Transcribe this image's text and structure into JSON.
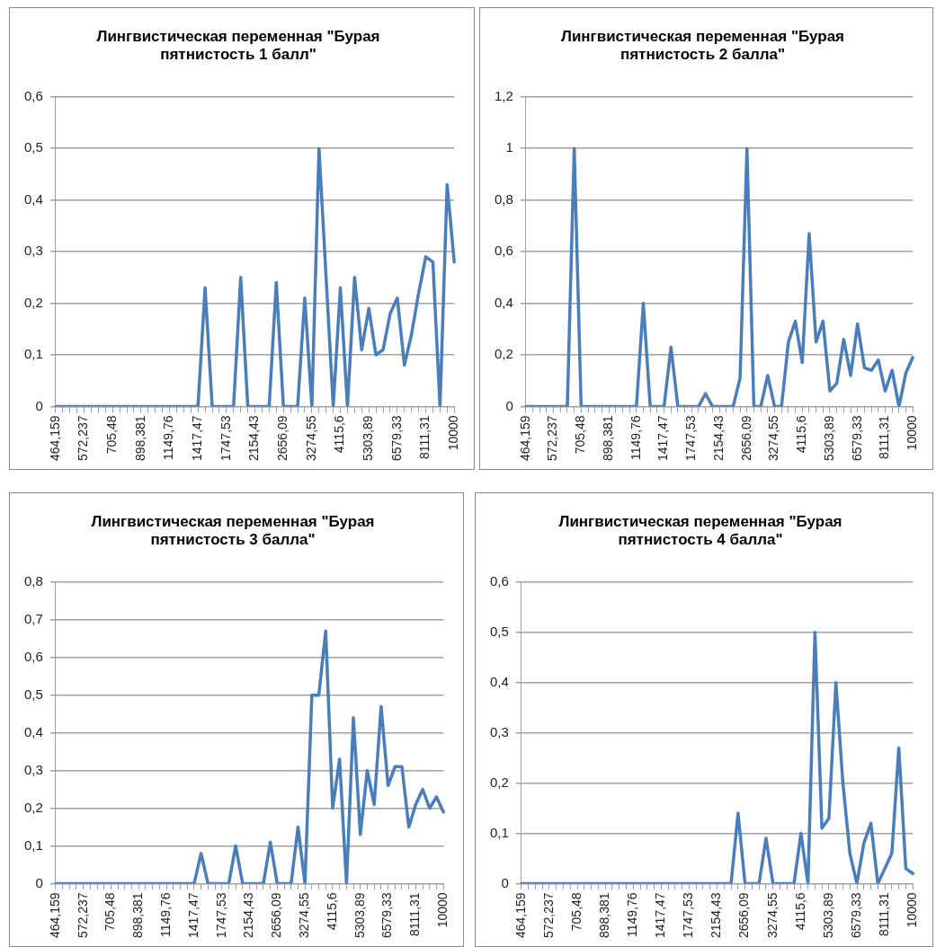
{
  "chart_data": [
    {
      "type": "line",
      "title": "Лингвистическая переменная \"Бурая пятнистость 1 балл\"",
      "categories": [
        "464,159",
        null,
        null,
        null,
        "572,237",
        null,
        null,
        null,
        "705,48",
        null,
        null,
        null,
        "898,381",
        null,
        null,
        null,
        "1149,76",
        null,
        null,
        null,
        "1417,47",
        null,
        null,
        null,
        "1747,53",
        null,
        null,
        null,
        "2154,43",
        null,
        null,
        null,
        "2656,09",
        null,
        null,
        null,
        "3274,55",
        null,
        null,
        null,
        "4115,6",
        null,
        null,
        null,
        "5303,89",
        null,
        null,
        null,
        "6579,33",
        null,
        null,
        null,
        "8111,31",
        null,
        null,
        null,
        "10000"
      ],
      "series": [
        {
          "color": "#4a7ebb",
          "values": [
            0,
            0,
            0,
            0,
            0,
            0,
            0,
            0,
            0,
            0,
            0,
            0,
            0,
            0,
            0,
            0,
            0,
            0,
            0,
            0,
            0,
            0.23,
            0,
            0,
            0,
            0,
            0.25,
            0,
            0,
            0,
            0,
            0.24,
            0,
            0,
            0,
            0.21,
            0,
            0.5,
            0.25,
            0,
            0.23,
            0,
            0.25,
            0.11,
            0.19,
            0.1,
            0.11,
            0.18,
            0.21,
            0.08,
            0.14,
            0.22,
            0.29,
            0.28,
            0,
            0.43,
            0.28
          ]
        }
      ],
      "ylim": [
        0,
        0.6
      ],
      "yticks": [
        {
          "value": 0,
          "label": "0"
        },
        {
          "value": 0.1,
          "label": "0,1"
        },
        {
          "value": 0.2,
          "label": "0,2"
        },
        {
          "value": 0.3,
          "label": "0,3"
        },
        {
          "value": 0.4,
          "label": "0,4"
        },
        {
          "value": 0.5,
          "label": "0,5"
        },
        {
          "value": 0.6,
          "label": "0,6"
        }
      ],
      "grid": "y",
      "legend": false,
      "marker": "none",
      "line_style": "solid"
    },
    {
      "type": "line",
      "title": "Лингвистическая переменная \"Бурая пятнистость 2 балла\"",
      "categories": [
        "464,159",
        null,
        null,
        null,
        "572,237",
        null,
        null,
        null,
        "705,48",
        null,
        null,
        null,
        "898,381",
        null,
        null,
        null,
        "1149,76",
        null,
        null,
        null,
        "1417,47",
        null,
        null,
        null,
        "1747,53",
        null,
        null,
        null,
        "2154,43",
        null,
        null,
        null,
        "2656,09",
        null,
        null,
        null,
        "3274,55",
        null,
        null,
        null,
        "4115,6",
        null,
        null,
        null,
        "5303,89",
        null,
        null,
        null,
        "6579,33",
        null,
        null,
        null,
        "8111,31",
        null,
        null,
        null,
        "10000"
      ],
      "series": [
        {
          "color": "#4a7ebb",
          "values": [
            0,
            0,
            0,
            0,
            0,
            0,
            0,
            1,
            0,
            0,
            0,
            0,
            0,
            0,
            0,
            0,
            0,
            0.4,
            0,
            0,
            0,
            0.23,
            0,
            0,
            0,
            0,
            0.05,
            0,
            0,
            0,
            0,
            0.11,
            1,
            0,
            0,
            0.12,
            0,
            0,
            0.25,
            0.33,
            0.17,
            0.67,
            0.25,
            0.33,
            0.06,
            0.09,
            0.26,
            0.12,
            0.32,
            0.15,
            0.14,
            0.18,
            0.06,
            0.14,
            0,
            0.13,
            0.19
          ]
        }
      ],
      "ylim": [
        0,
        1.2
      ],
      "yticks": [
        {
          "value": 0,
          "label": "0"
        },
        {
          "value": 0.2,
          "label": "0,2"
        },
        {
          "value": 0.4,
          "label": "0,4"
        },
        {
          "value": 0.6,
          "label": "0,6"
        },
        {
          "value": 0.8,
          "label": "0,8"
        },
        {
          "value": 1,
          "label": "1"
        },
        {
          "value": 1.2,
          "label": "1,2"
        }
      ],
      "grid": "y",
      "legend": false,
      "marker": "none",
      "line_style": "solid"
    },
    {
      "type": "line",
      "title": "Лингвистическая переменная \"Бурая пятнистость 3 балла\"",
      "categories": [
        "464,159",
        null,
        null,
        null,
        "572,237",
        null,
        null,
        null,
        "705,48",
        null,
        null,
        null,
        "898,381",
        null,
        null,
        null,
        "1149,76",
        null,
        null,
        null,
        "1417,47",
        null,
        null,
        null,
        "1747,53",
        null,
        null,
        null,
        "2154,43",
        null,
        null,
        null,
        "2656,09",
        null,
        null,
        null,
        "3274,55",
        null,
        null,
        null,
        "4115,6",
        null,
        null,
        null,
        "5303,89",
        null,
        null,
        null,
        "6579,33",
        null,
        null,
        null,
        "8111,31",
        null,
        null,
        null,
        "10000"
      ],
      "series": [
        {
          "color": "#4a7ebb",
          "values": [
            0,
            0,
            0,
            0,
            0,
            0,
            0,
            0,
            0,
            0,
            0,
            0,
            0,
            0,
            0,
            0,
            0,
            0,
            0,
            0,
            0,
            0.08,
            0,
            0,
            0,
            0,
            0.1,
            0,
            0,
            0,
            0,
            0.11,
            0,
            0,
            0,
            0.15,
            0,
            0.5,
            0.5,
            0.67,
            0.2,
            0.33,
            0,
            0.44,
            0.13,
            0.3,
            0.21,
            0.47,
            0.26,
            0.31,
            0.31,
            0.15,
            0.21,
            0.25,
            0.2,
            0.23,
            0.19
          ]
        }
      ],
      "ylim": [
        0,
        0.8
      ],
      "yticks": [
        {
          "value": 0,
          "label": "0"
        },
        {
          "value": 0.1,
          "label": "0,1"
        },
        {
          "value": 0.2,
          "label": "0,2"
        },
        {
          "value": 0.3,
          "label": "0,3"
        },
        {
          "value": 0.4,
          "label": "0,4"
        },
        {
          "value": 0.5,
          "label": "0,5"
        },
        {
          "value": 0.6,
          "label": "0,6"
        },
        {
          "value": 0.7,
          "label": "0,7"
        },
        {
          "value": 0.8,
          "label": "0,8"
        }
      ],
      "grid": "y",
      "legend": false,
      "marker": "none",
      "line_style": "solid"
    },
    {
      "type": "line",
      "title": "Лингвистическая переменная \"Бурая пятнистость 4 балла\"",
      "categories": [
        "464,159",
        null,
        null,
        null,
        "572,237",
        null,
        null,
        null,
        "705,48",
        null,
        null,
        null,
        "898,381",
        null,
        null,
        null,
        "1149,76",
        null,
        null,
        null,
        "1417,47",
        null,
        null,
        null,
        "1747,53",
        null,
        null,
        null,
        "2154,43",
        null,
        null,
        null,
        "2656,09",
        null,
        null,
        null,
        "3274,55",
        null,
        null,
        null,
        "4115,6",
        null,
        null,
        null,
        "5303,89",
        null,
        null,
        null,
        "6579,33",
        null,
        null,
        null,
        "8111,31",
        null,
        null,
        null,
        "10000"
      ],
      "series": [
        {
          "color": "#4a7ebb",
          "values": [
            0,
            0,
            0,
            0,
            0,
            0,
            0,
            0,
            0,
            0,
            0,
            0,
            0,
            0,
            0,
            0,
            0,
            0,
            0,
            0,
            0,
            0,
            0,
            0,
            0,
            0,
            0,
            0,
            0,
            0,
            0,
            0.14,
            0,
            0,
            0,
            0.09,
            0,
            0,
            0,
            0,
            0.1,
            0,
            0.5,
            0.11,
            0.13,
            0.4,
            0.2,
            0.06,
            0,
            0.08,
            0.12,
            0,
            0.03,
            0.06,
            0.27,
            0.03,
            0.02
          ]
        }
      ],
      "ylim": [
        0,
        0.6
      ],
      "yticks": [
        {
          "value": 0,
          "label": "0"
        },
        {
          "value": 0.1,
          "label": "0,1"
        },
        {
          "value": 0.2,
          "label": "0,2"
        },
        {
          "value": 0.3,
          "label": "0,3"
        },
        {
          "value": 0.4,
          "label": "0,4"
        },
        {
          "value": 0.5,
          "label": "0,5"
        },
        {
          "value": 0.6,
          "label": "0,6"
        }
      ],
      "grid": "y",
      "legend": false,
      "marker": "none",
      "line_style": "solid"
    }
  ]
}
